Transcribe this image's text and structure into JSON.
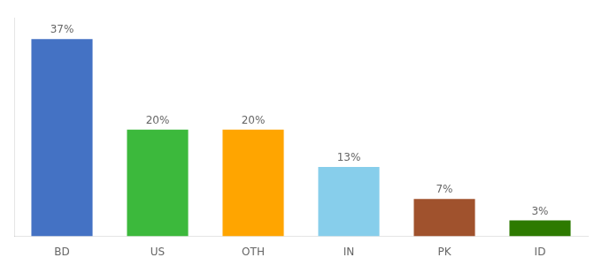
{
  "chart_data": {
    "type": "bar",
    "categories": [
      "BD",
      "US",
      "OTH",
      "IN",
      "PK",
      "ID"
    ],
    "values": [
      37,
      20,
      20,
      13,
      7,
      3
    ],
    "value_labels": [
      "37%",
      "20%",
      "20%",
      "13%",
      "7%",
      "3%"
    ],
    "colors": [
      "#4472C4",
      "#3CB93C",
      "#FFA500",
      "#87CEEB",
      "#A0522D",
      "#2D7A00"
    ],
    "ylim": [
      0,
      41
    ],
    "grid": false,
    "data_labels": true,
    "tick_labels": "x"
  }
}
